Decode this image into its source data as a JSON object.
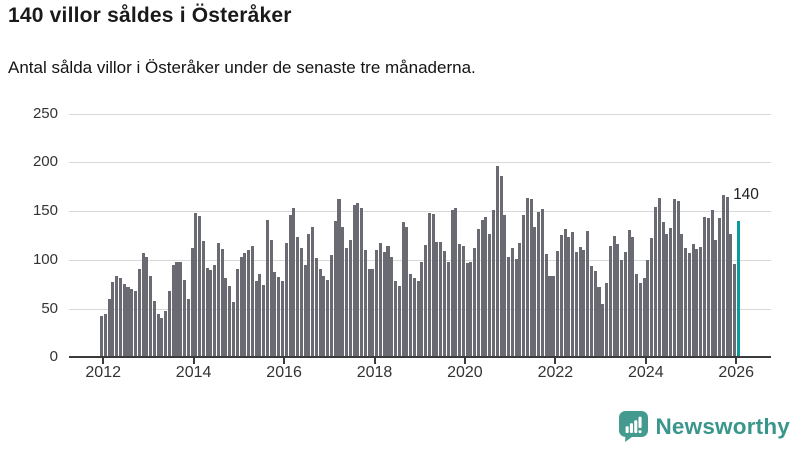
{
  "header": {
    "title": "140 villor såldes i Österåker",
    "subtitle": "Antal sålda villor i Österåker under de senaste tre månaderna."
  },
  "chart_data": {
    "type": "bar",
    "title": "140 villor såldes i Österåker",
    "subtitle": "Antal sålda villor i Österåker under de senaste tre månaderna.",
    "x_period": "monthly",
    "x_start": "2012-01",
    "x_end": "2026-02",
    "x_tick_labels": [
      "2012",
      "2014",
      "2016",
      "2018",
      "2020",
      "2022",
      "2024",
      "2026"
    ],
    "y_ticks": [
      0,
      50,
      100,
      150,
      200,
      250
    ],
    "y_tick_labels": [
      "0",
      "50",
      "100",
      "150",
      "200",
      "250"
    ],
    "ylim": [
      0,
      250
    ],
    "grid": "horizontal",
    "legend": "none",
    "bar_color": "#696a72",
    "highlight_color": "#0d9a9b",
    "highlight_index": 169,
    "annotation": {
      "text": "140",
      "target": "last-bar"
    },
    "values": [
      42,
      45,
      60,
      77,
      83,
      81,
      75,
      72,
      70,
      68,
      91,
      107,
      103,
      84,
      58,
      45,
      40,
      48,
      68,
      95,
      98,
      98,
      79,
      60,
      112,
      148,
      145,
      119,
      92,
      90,
      95,
      117,
      111,
      81,
      73,
      57,
      91,
      103,
      107,
      110,
      114,
      78,
      86,
      74,
      141,
      120,
      88,
      82,
      78,
      117,
      146,
      153,
      124,
      112,
      95,
      127,
      134,
      102,
      91,
      83,
      79,
      105,
      140,
      162,
      134,
      112,
      120,
      156,
      158,
      153,
      110,
      91,
      91,
      110,
      117,
      108,
      114,
      103,
      78,
      73,
      139,
      134,
      86,
      81,
      78,
      98,
      115,
      148,
      147,
      118,
      118,
      109,
      98,
      151,
      153,
      116,
      114,
      97,
      98,
      112,
      132,
      141,
      144,
      127,
      151,
      196,
      186,
      146,
      103,
      112,
      101,
      117,
      146,
      164,
      162,
      134,
      149,
      152,
      106,
      83,
      83,
      109,
      126,
      132,
      124,
      129,
      108,
      113,
      110,
      130,
      94,
      89,
      72,
      55,
      76,
      114,
      125,
      116,
      100,
      108,
      131,
      124,
      86,
      76,
      81,
      100,
      122,
      154,
      164,
      139,
      127,
      133,
      163,
      160,
      127,
      112,
      107,
      116,
      111,
      113,
      144,
      143,
      151,
      120,
      143,
      167,
      165,
      127,
      96,
      140
    ]
  },
  "branding": {
    "logo_text": "Newsworthy",
    "logo_color": "#3a968c",
    "logo_icon": "newsworthy-speech-bubble-chart-icon"
  }
}
